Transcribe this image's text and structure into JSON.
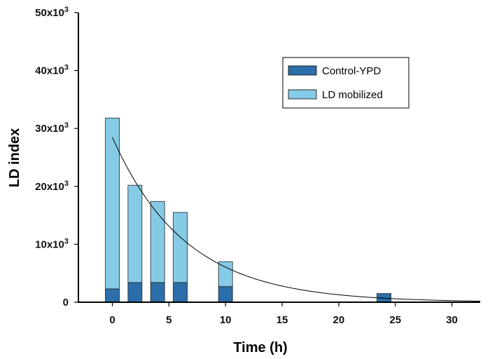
{
  "chart_data": {
    "type": "bar",
    "title": "",
    "xlabel": "Time (h)",
    "ylabel": "LD index",
    "xlim": [
      -3,
      32.5
    ],
    "ylim": [
      0,
      50000
    ],
    "x_ticks": [
      0,
      5,
      10,
      15,
      20,
      25,
      30
    ],
    "y_ticks": [
      {
        "value": 0,
        "base": "0",
        "exp": ""
      },
      {
        "value": 10000,
        "base": "10x10",
        "exp": "3"
      },
      {
        "value": 20000,
        "base": "20x10",
        "exp": "3"
      },
      {
        "value": 30000,
        "base": "30x10",
        "exp": "3"
      },
      {
        "value": 40000,
        "base": "40x10",
        "exp": "3"
      },
      {
        "value": 50000,
        "base": "50x10",
        "exp": "3"
      }
    ],
    "x": [
      0,
      2,
      4,
      6,
      10,
      24
    ],
    "series": [
      {
        "name": "Control-YPD",
        "color": "#2c6ea9",
        "values": [
          2300,
          3400,
          3400,
          3400,
          2700,
          1500
        ]
      },
      {
        "name": "LD mobilized",
        "color": "#86cbe6",
        "values": [
          29500,
          16800,
          14000,
          12100,
          4300,
          0
        ]
      }
    ],
    "fit_curve": {
      "type": "exponential-decay",
      "y0": 28500,
      "k": 0.155,
      "x_range": [
        0,
        32.5
      ]
    },
    "grid": false,
    "legend_position": "top-right"
  }
}
